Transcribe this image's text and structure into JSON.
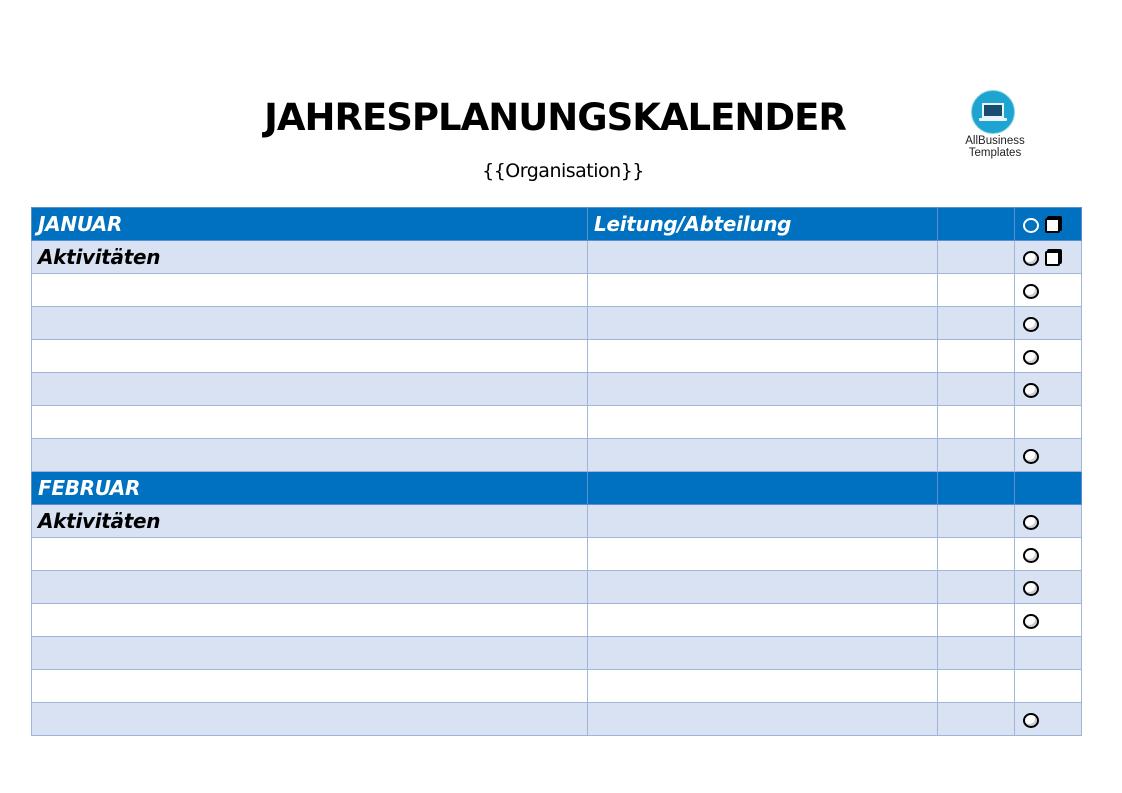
{
  "header": {
    "title": "JAHRESPLANUNGSKALENDER",
    "subtitle": "{{Organisation}}"
  },
  "logo": {
    "icon": "laptop-icon",
    "line1": "AllBusiness",
    "line2": "Templates",
    "color": "#1ea4d0"
  },
  "colors": {
    "month_row": "#0070c0",
    "shaded_row": "#d9e2f3",
    "border": "#9fb6d8"
  },
  "table": {
    "col2_header": "Leitung/Abteilung",
    "activities_label": "Aktivitäten",
    "months": [
      {
        "name": "JANUAR",
        "rows": [
          {
            "shade": true,
            "symbol": "circle-square"
          },
          {
            "shade": false,
            "symbol": "circle"
          },
          {
            "shade": true,
            "symbol": "circle"
          },
          {
            "shade": false,
            "symbol": "circle"
          },
          {
            "shade": true,
            "symbol": "circle"
          },
          {
            "shade": false,
            "symbol": ""
          },
          {
            "shade": true,
            "symbol": "circle"
          }
        ]
      },
      {
        "name": "FEBRUAR",
        "rows": [
          {
            "shade": true,
            "symbol": "circle"
          },
          {
            "shade": false,
            "symbol": "circle"
          },
          {
            "shade": true,
            "symbol": "circle"
          },
          {
            "shade": false,
            "symbol": "circle"
          },
          {
            "shade": true,
            "symbol": ""
          },
          {
            "shade": false,
            "symbol": ""
          },
          {
            "shade": true,
            "symbol": "circle"
          }
        ]
      }
    ]
  }
}
